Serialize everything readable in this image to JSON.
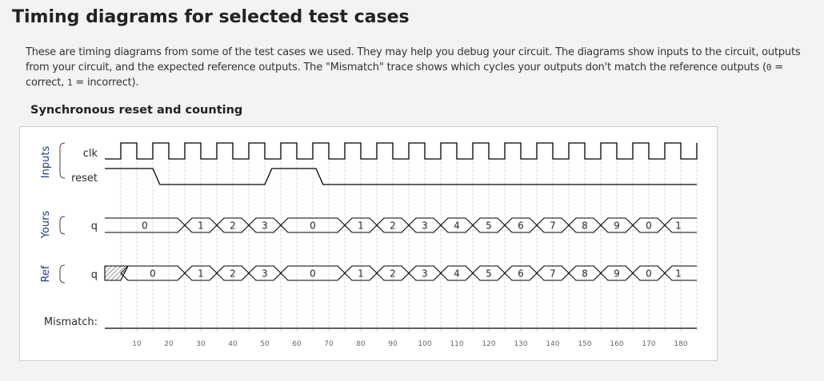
{
  "page": {
    "title": "Timing diagrams for selected test cases",
    "description_pre": "These are timing diagrams from some of the test cases we used. They may help you debug your circuit. The diagrams show inputs to the circuit, outputs from your circuit, and the expected reference outputs. The \"Mismatch\" trace shows which cycles your outputs don't match the reference outputs (",
    "code_correct": "0",
    "description_mid": " = correct, ",
    "code_incorrect": "1",
    "description_post": " = incorrect).",
    "test_case_title": "Synchronous reset and counting"
  },
  "diagram": {
    "groups": [
      "Inputs",
      "Yours",
      "Ref"
    ],
    "signal_labels": {
      "clk": "clk",
      "reset": "reset",
      "yours_q": "q",
      "ref_q": "q",
      "mismatch": "Mismatch:"
    },
    "time_ticks": [
      10,
      20,
      30,
      40,
      50,
      60,
      70,
      80,
      90,
      100,
      110,
      120,
      130,
      140,
      150,
      160,
      170,
      180
    ],
    "time_range": [
      0,
      185
    ],
    "clk_period": 10,
    "reset": [
      [
        0,
        1
      ],
      [
        15,
        0
      ],
      [
        50,
        1
      ],
      [
        66,
        0
      ]
    ],
    "yours_q": [
      {
        "t": 0,
        "v": "0"
      },
      {
        "t": 25,
        "v": "1"
      },
      {
        "t": 35,
        "v": "2"
      },
      {
        "t": 45,
        "v": "3"
      },
      {
        "t": 55,
        "v": "0"
      },
      {
        "t": 75,
        "v": "1"
      },
      {
        "t": 85,
        "v": "2"
      },
      {
        "t": 95,
        "v": "3"
      },
      {
        "t": 105,
        "v": "4"
      },
      {
        "t": 115,
        "v": "5"
      },
      {
        "t": 125,
        "v": "6"
      },
      {
        "t": 135,
        "v": "7"
      },
      {
        "t": 145,
        "v": "8"
      },
      {
        "t": 155,
        "v": "9"
      },
      {
        "t": 165,
        "v": "0"
      },
      {
        "t": 175,
        "v": "1"
      }
    ],
    "ref_q": [
      {
        "t": 5,
        "v": "0"
      },
      {
        "t": 25,
        "v": "1"
      },
      {
        "t": 35,
        "v": "2"
      },
      {
        "t": 45,
        "v": "3"
      },
      {
        "t": 55,
        "v": "0"
      },
      {
        "t": 75,
        "v": "1"
      },
      {
        "t": 85,
        "v": "2"
      },
      {
        "t": 95,
        "v": "3"
      },
      {
        "t": 105,
        "v": "4"
      },
      {
        "t": 115,
        "v": "5"
      },
      {
        "t": 125,
        "v": "6"
      },
      {
        "t": 135,
        "v": "7"
      },
      {
        "t": 145,
        "v": "8"
      },
      {
        "t": 155,
        "v": "9"
      },
      {
        "t": 165,
        "v": "0"
      },
      {
        "t": 175,
        "v": "1"
      }
    ],
    "ref_unknown_until": 5,
    "mismatch": [
      [
        0,
        0
      ]
    ],
    "colors": {
      "trace": "#000000",
      "grid": "#d8d8d8",
      "text": "#2a2a2a",
      "tick_text": "#666666",
      "group_label": "#1e3a8a"
    }
  }
}
